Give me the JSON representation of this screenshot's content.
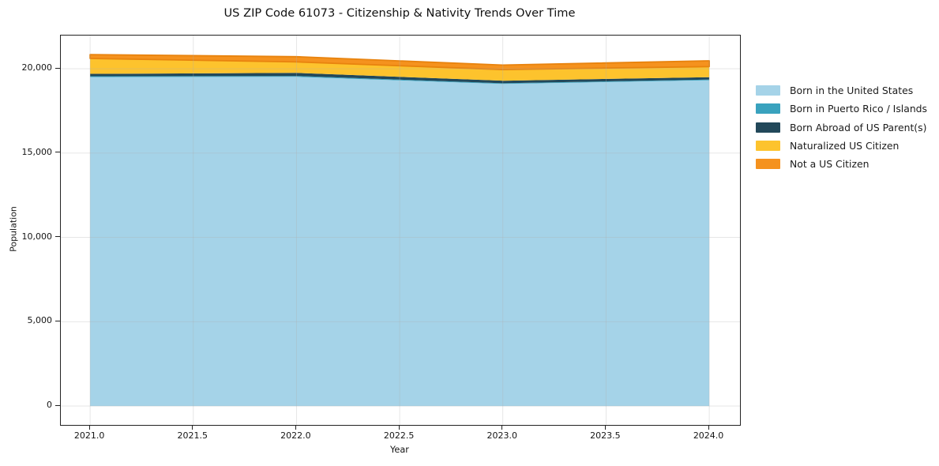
{
  "chart_data": {
    "type": "area",
    "stacked": true,
    "title": "US ZIP Code 61073 - Citizenship & Nativity Trends Over Time",
    "xlabel": "Year",
    "ylabel": "Population",
    "x": [
      2021,
      2022,
      2023,
      2024
    ],
    "series": [
      {
        "name": "Born in the United States",
        "color": "#A5D3E8",
        "values": [
          19510,
          19520,
          19100,
          19320
        ]
      },
      {
        "name": "Born in Puerto Rico / Islands",
        "color": "#39A2BE",
        "values": [
          50,
          50,
          40,
          40
        ]
      },
      {
        "name": "Born Abroad of US Parent(s)",
        "color": "#22485A",
        "values": [
          140,
          185,
          150,
          140
        ]
      },
      {
        "name": "Naturalized US Citizen",
        "color": "#FDC32D",
        "values": [
          910,
          650,
          660,
          630
        ]
      },
      {
        "name": "Not a US Citizen",
        "color": "#F5921E",
        "values": [
          230,
          310,
          270,
          340
        ],
        "edge_color": "#E8830E"
      }
    ],
    "totals": [
      20840,
      20715,
      20220,
      20470
    ],
    "x_ticks": [
      "2021.0",
      "2021.5",
      "2022.0",
      "2022.5",
      "2023.0",
      "2023.5",
      "2024.0"
    ],
    "x_tick_values": [
      2021,
      2021.5,
      2022,
      2022.5,
      2023,
      2023.5,
      2024
    ],
    "y_ticks": [
      "0",
      "5,000",
      "10,000",
      "15,000",
      "20,000"
    ],
    "y_tick_values": [
      0,
      5000,
      10000,
      15000,
      20000
    ],
    "xlim": [
      2020.858,
      2024.149
    ],
    "ylim": [
      -1120,
      21970
    ],
    "grid": true,
    "grid_color": "#B0B0B0",
    "grid_alpha": 0.35,
    "spine_color": "#222222",
    "legend_position": "right-outside"
  }
}
